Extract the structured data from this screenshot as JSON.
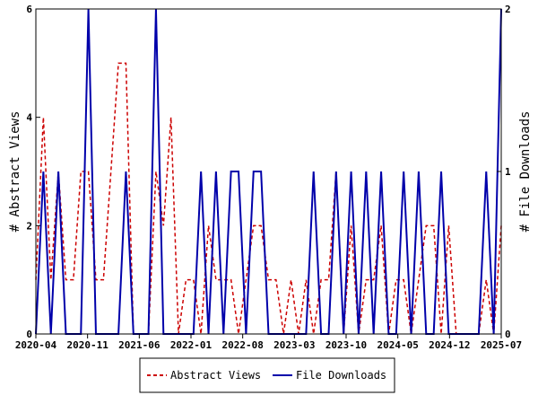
{
  "chart_data": {
    "type": "line",
    "title": "",
    "x_tick_labels": [
      "2020-04",
      "2020-11",
      "2021-06",
      "2022-01",
      "2022-08",
      "2023-03",
      "2023-10",
      "2024-05",
      "2024-12",
      "2025-07"
    ],
    "y_left": {
      "label": "# Abstract Views",
      "ylim": [
        0,
        6
      ],
      "ticks": [
        "0",
        "2",
        "4",
        "6"
      ]
    },
    "y_right": {
      "label": "# File Downloads",
      "ylim": [
        0,
        2
      ],
      "ticks": [
        "0",
        "1",
        "2"
      ]
    },
    "grid": false,
    "legend_position": "bottom",
    "series": [
      {
        "name": "Abstract Views",
        "axis": "left",
        "color": "#cc0000",
        "style": "dashed",
        "values": [
          1,
          4,
          1,
          3,
          1,
          1,
          3,
          3,
          1,
          1,
          3,
          5,
          5,
          0,
          0,
          0,
          3,
          2,
          4,
          0,
          1,
          1,
          0,
          2,
          1,
          1,
          1,
          0,
          1,
          2,
          2,
          1,
          1,
          0,
          1,
          0,
          1,
          0,
          1,
          1,
          3,
          0,
          2,
          0,
          1,
          1,
          2,
          0,
          1,
          1,
          0,
          1,
          2,
          2,
          0,
          2,
          0,
          0,
          0,
          0,
          1,
          0,
          2
        ]
      },
      {
        "name": "File Downloads",
        "axis": "right",
        "color": "#0000aa",
        "style": "solid",
        "values": [
          0,
          1,
          0,
          1,
          0,
          0,
          0,
          2,
          0,
          0,
          0,
          0,
          1,
          0,
          0,
          0,
          2,
          0,
          0,
          0,
          0,
          0,
          1,
          0,
          1,
          0,
          1,
          1,
          0,
          1,
          1,
          0,
          0,
          0,
          0,
          0,
          0,
          1,
          0,
          0,
          1,
          0,
          1,
          0,
          1,
          0,
          1,
          0,
          0,
          1,
          0,
          1,
          0,
          0,
          1,
          0,
          0,
          0,
          0,
          0,
          1,
          0,
          2
        ]
      }
    ]
  }
}
